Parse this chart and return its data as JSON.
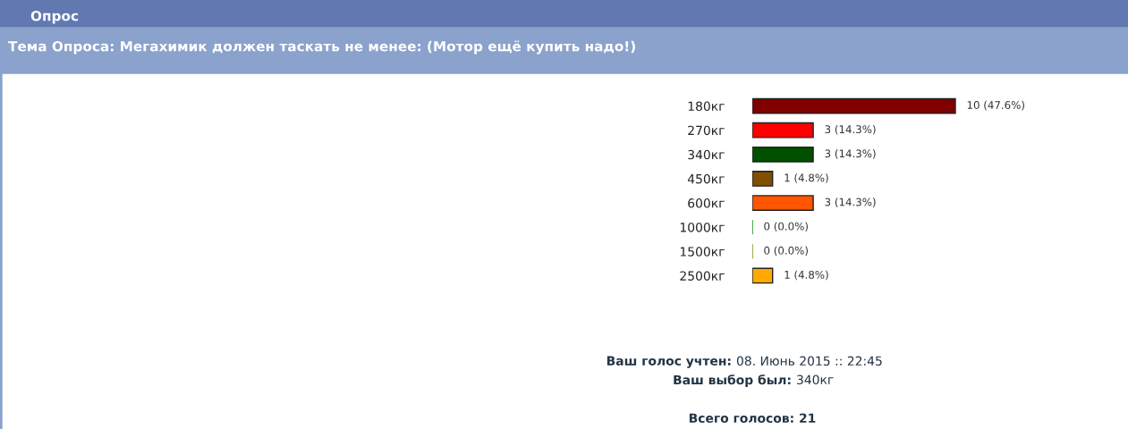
{
  "chart_data": {
    "type": "bar",
    "orientation": "horizontal",
    "title": "Опрос",
    "subtitle": "Тема Опроса: Мегахимик должен таскать не менее: (Мотор ещё купить надо!)",
    "categories": [
      "180кг",
      "270кг",
      "340кг",
      "450кг",
      "600кг",
      "1000кг",
      "1500кг",
      "2500кг"
    ],
    "values": [
      10,
      3,
      3,
      1,
      3,
      0,
      0,
      1
    ],
    "colors": [
      "#800000",
      "#ff0000",
      "#005000",
      "#805000",
      "#ff5500",
      "#008000",
      "#808000",
      "#ffaa00"
    ],
    "value_labels": [
      "10 (47.6%)",
      "3 (14.3%)",
      "3 (14.3%)",
      "1 (4.8%)",
      "3 (14.3%)",
      "0 (0.0%)",
      "0 (0.0%)",
      "1 (4.8%)"
    ],
    "annotations": [
      "Ваш голос учтен:",
      "08. Июнь 2015 :: 22:45",
      "Ваш выбор был:",
      "340кг",
      "Всего голосов: 21"
    ]
  }
}
